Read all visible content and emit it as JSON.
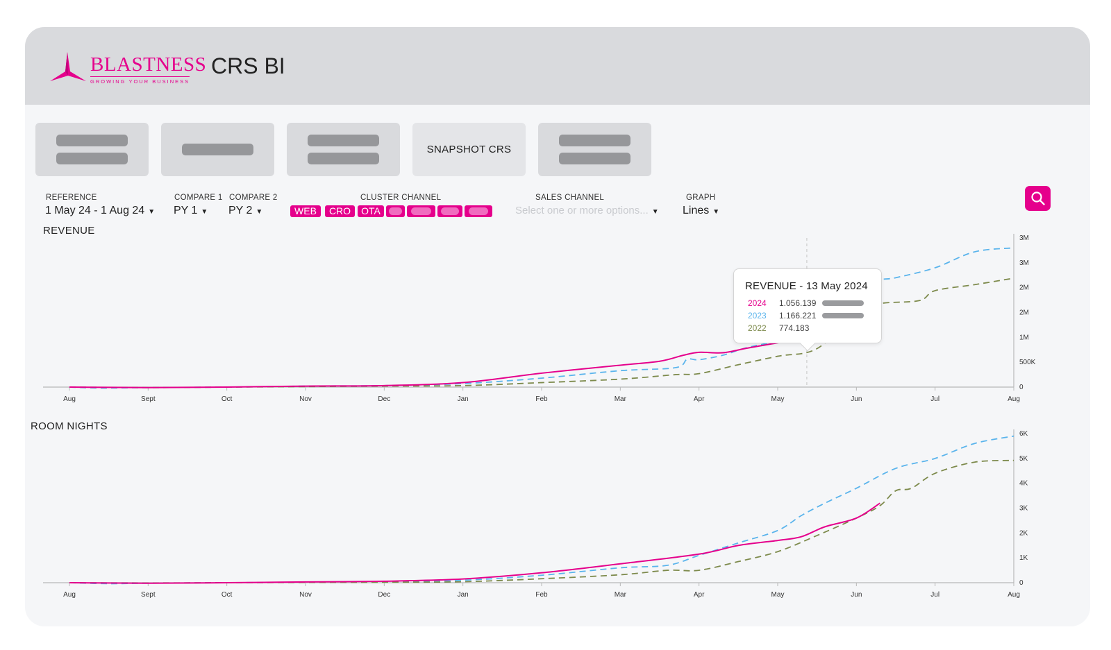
{
  "header": {
    "brand": "BLASTNESS",
    "tagline": "GROWING YOUR BUSINESS",
    "app_title": "CRS BI",
    "brand_color": "#e5008c"
  },
  "tiles": [
    {
      "label": "",
      "placeholder_bars": 2
    },
    {
      "label": "",
      "placeholder_bars": 1
    },
    {
      "label": "",
      "placeholder_bars": 2
    },
    {
      "label": "SNAPSHOT CRS",
      "placeholder_bars": 0
    },
    {
      "label": "",
      "placeholder_bars": 2
    }
  ],
  "filters": {
    "reference": {
      "label": "REFERENCE",
      "value": "1 May 24 - 1 Aug 24"
    },
    "compare1": {
      "label": "COMPARE 1",
      "value": "PY 1"
    },
    "compare2": {
      "label": "COMPARE 2",
      "value": "PY 2"
    },
    "cluster_channel": {
      "label": "CLUSTER CHANNEL",
      "chips": [
        "WEB",
        "CRO",
        "OTA",
        "",
        "",
        "",
        ""
      ]
    },
    "sales_channel": {
      "label": "SALES CHANNEL",
      "placeholder": "Select one or more options..."
    },
    "graph": {
      "label": "GRAPH",
      "value": "Lines"
    }
  },
  "search_icon": "search-icon",
  "tooltip": {
    "title": "REVENUE - 13 May 2024",
    "rows": [
      {
        "year": "2024",
        "value": "1.056.139",
        "color": "#e5008c"
      },
      {
        "year": "2023",
        "value": "1.166.221",
        "color": "#5ab4ec"
      },
      {
        "year": "2022",
        "value": "774.183",
        "color": "#7d8a4c"
      }
    ]
  },
  "chart_data": [
    {
      "type": "line",
      "title": "REVENUE",
      "x_ticks": [
        "Aug",
        "Sept",
        "Oct",
        "Nov",
        "Dec",
        "Jan",
        "Feb",
        "Mar",
        "Apr",
        "May",
        "Jun",
        "Jul",
        "Aug"
      ],
      "y_ticks": [
        "0",
        "500K",
        "1M",
        "2M",
        "2M",
        "3M",
        "3M"
      ],
      "ylim": [
        0,
        3000000
      ],
      "series": [
        {
          "name": "2024",
          "color": "#e5008c",
          "dashed": false,
          "x": [
            0,
            1,
            2,
            3,
            4,
            5,
            6,
            7,
            7.5,
            7.8,
            8,
            8.3,
            8.6,
            9,
            9.3,
            9.5
          ],
          "y": [
            0,
            -10000,
            0,
            20000,
            30000,
            90000,
            280000,
            440000,
            520000,
            640000,
            700000,
            690000,
            780000,
            890000,
            960000,
            1056139
          ]
        },
        {
          "name": "2023",
          "color": "#5ab4ec",
          "dashed": true,
          "x": [
            0,
            0.4,
            1,
            2,
            3,
            4,
            5,
            6,
            7,
            7.7,
            7.85,
            8,
            8.3,
            8.6,
            9,
            9.5,
            10,
            10.5,
            11,
            11.5,
            12
          ],
          "y": [
            0,
            -20000,
            -10000,
            0,
            20000,
            30000,
            70000,
            180000,
            330000,
            390000,
            560000,
            550000,
            640000,
            790000,
            930000,
            1166221,
            2040000,
            2200000,
            2400000,
            2720000,
            2800000
          ]
        },
        {
          "name": "2022",
          "color": "#7d8a4c",
          "dashed": true,
          "x": [
            0,
            1,
            2,
            3,
            4,
            5,
            6,
            7,
            7.7,
            8,
            8.5,
            9,
            9.5,
            10,
            10.3,
            10.8,
            11,
            11.5,
            12
          ],
          "y": [
            0,
            -10000,
            0,
            10000,
            20000,
            30000,
            90000,
            160000,
            250000,
            270000,
            450000,
            620000,
            774183,
            1500000,
            1680000,
            1740000,
            1940000,
            2060000,
            2190000
          ]
        }
      ]
    },
    {
      "type": "line",
      "title": "ROOM NIGHTS",
      "x_ticks": [
        "Aug",
        "Sept",
        "Oct",
        "Nov",
        "Dec",
        "Jan",
        "Feb",
        "Mar",
        "Apr",
        "May",
        "Jun",
        "Jul",
        "Aug"
      ],
      "y_ticks": [
        "0",
        "1K",
        "2K",
        "3K",
        "4K",
        "5K",
        "6K"
      ],
      "ylim": [
        0,
        6000
      ],
      "series": [
        {
          "name": "2024",
          "color": "#e5008c",
          "dashed": false,
          "x": [
            0,
            1,
            2,
            3,
            4,
            5,
            6,
            7,
            8,
            8.5,
            9,
            9.3,
            9.6,
            10,
            10.3
          ],
          "y": [
            0,
            -20,
            0,
            30,
            60,
            150,
            400,
            760,
            1150,
            1500,
            1700,
            1850,
            2250,
            2600,
            3200
          ]
        },
        {
          "name": "2023",
          "color": "#5ab4ec",
          "dashed": true,
          "x": [
            0,
            0.5,
            1,
            2,
            3,
            4,
            5,
            6,
            7,
            7.6,
            8,
            8.5,
            9,
            9.3,
            9.6,
            10,
            10.5,
            11,
            11.5,
            12
          ],
          "y": [
            0,
            -40,
            -20,
            0,
            20,
            50,
            100,
            300,
            600,
            700,
            1100,
            1600,
            2100,
            2700,
            3200,
            3800,
            4600,
            5000,
            5600,
            5900
          ]
        },
        {
          "name": "2022",
          "color": "#7d8a4c",
          "dashed": true,
          "x": [
            0,
            1,
            2,
            3,
            4,
            5,
            6,
            7,
            7.6,
            8,
            8.5,
            9,
            9.5,
            10,
            10.3,
            10.5,
            10.7,
            11,
            11.5,
            12
          ],
          "y": [
            0,
            -10,
            0,
            10,
            20,
            40,
            160,
            320,
            500,
            500,
            850,
            1250,
            1900,
            2600,
            3100,
            3700,
            3800,
            4400,
            4850,
            4920
          ]
        }
      ]
    }
  ]
}
